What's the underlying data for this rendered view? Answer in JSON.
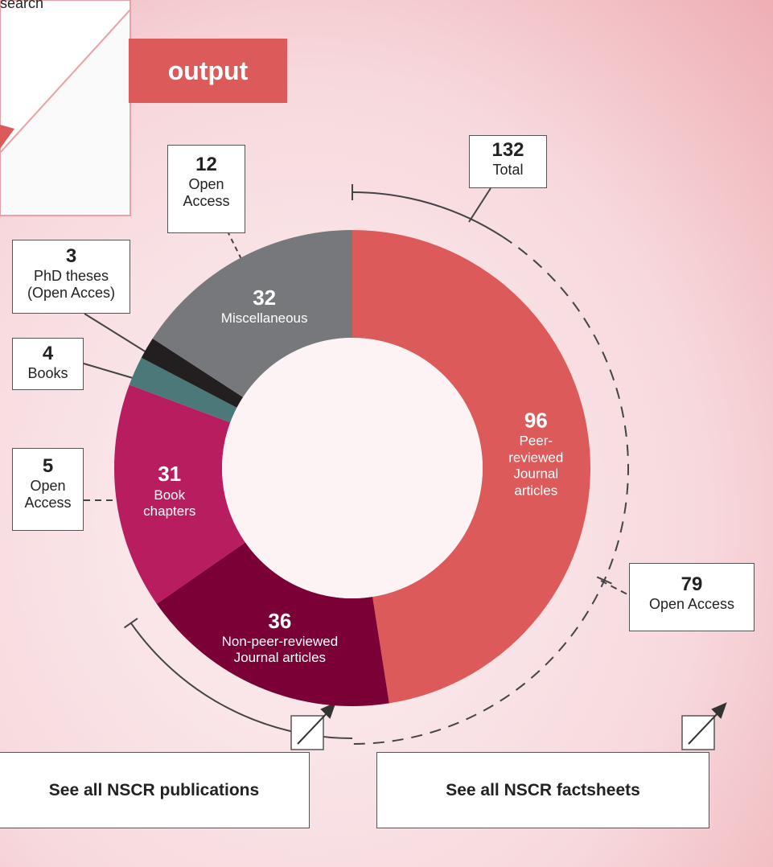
{
  "header": {
    "search_text": "search",
    "title": "output"
  },
  "chart_data": {
    "type": "donut",
    "segments": [
      {
        "name": "Peer-reviewed Journal articles",
        "value": 96,
        "color": "#dc5a5a"
      },
      {
        "name": "Non-peer-reviewed Journal articles",
        "value": 36,
        "color": "#7a0036"
      },
      {
        "name": "Book chapters",
        "value": 31,
        "color": "#b81d60"
      },
      {
        "name": "Books",
        "value": 4,
        "color": "#4b7878"
      },
      {
        "name": "PhD theses (Open Acces)",
        "value": 3,
        "color": "#231f20"
      },
      {
        "name": "Miscellaneous",
        "value": 32,
        "color": "#77787b"
      }
    ],
    "total": {
      "value": 132,
      "label": "Total"
    },
    "open_access": [
      {
        "value": 12,
        "label": "Open Access"
      },
      {
        "value": 5,
        "label": "Open Access"
      },
      {
        "value": 79,
        "label": "Open Access"
      }
    ]
  },
  "buttons": [
    "See all NSCR publications",
    "See all NSCR factsheets"
  ]
}
